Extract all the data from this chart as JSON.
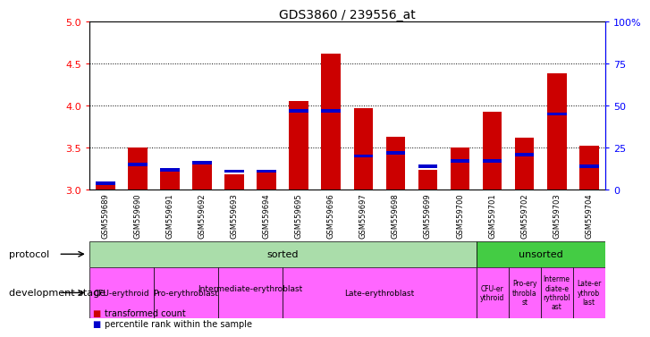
{
  "title": "GDS3860 / 239556_at",
  "samples": [
    "GSM559689",
    "GSM559690",
    "GSM559691",
    "GSM559692",
    "GSM559693",
    "GSM559694",
    "GSM559695",
    "GSM559696",
    "GSM559697",
    "GSM559698",
    "GSM559699",
    "GSM559700",
    "GSM559701",
    "GSM559702",
    "GSM559703",
    "GSM559704"
  ],
  "transformed_count": [
    3.1,
    3.5,
    3.25,
    3.3,
    3.18,
    3.2,
    4.05,
    4.62,
    3.97,
    3.63,
    3.24,
    3.5,
    3.93,
    3.62,
    4.38,
    3.52
  ],
  "percentile_pct": [
    4,
    15,
    12,
    16,
    11,
    11,
    47,
    47,
    20,
    22,
    14,
    17,
    17,
    21,
    45,
    14
  ],
  "ylim_left": [
    3.0,
    5.0
  ],
  "ylim_right": [
    0,
    100
  ],
  "yticks_left": [
    3.0,
    3.5,
    4.0,
    4.5,
    5.0
  ],
  "yticks_right": [
    0,
    25,
    50,
    75,
    100
  ],
  "bar_color": "#cc0000",
  "blue_color": "#0000cc",
  "sorted_color": "#aaddaa",
  "unsorted_color": "#44cc44",
  "dev_color": "#ff66ff",
  "gray_bg": "#cccccc",
  "sorted_n": 12,
  "dev_groups_sorted": [
    {
      "label": "CFU-erythroid",
      "start": 0,
      "end": 2
    },
    {
      "label": "Pro-erythroblast",
      "start": 2,
      "end": 4
    },
    {
      "label": "Intermediate-erythroblast\n",
      "start": 4,
      "end": 6
    },
    {
      "label": "Late-erythroblast",
      "start": 6,
      "end": 12
    }
  ],
  "dev_groups_unsorted": [
    {
      "label": "CFU-er\nythroid",
      "start": 12,
      "end": 13
    },
    {
      "label": "Pro-ery\nthrobla\nst",
      "start": 13,
      "end": 14
    },
    {
      "label": "Interme\ndiate-e\nrythrobl\nast",
      "start": 14,
      "end": 15
    },
    {
      "label": "Late-er\nythrob\nlast",
      "start": 15,
      "end": 16
    }
  ],
  "legend_red": "transformed count",
  "legend_blue": "percentile rank within the sample"
}
